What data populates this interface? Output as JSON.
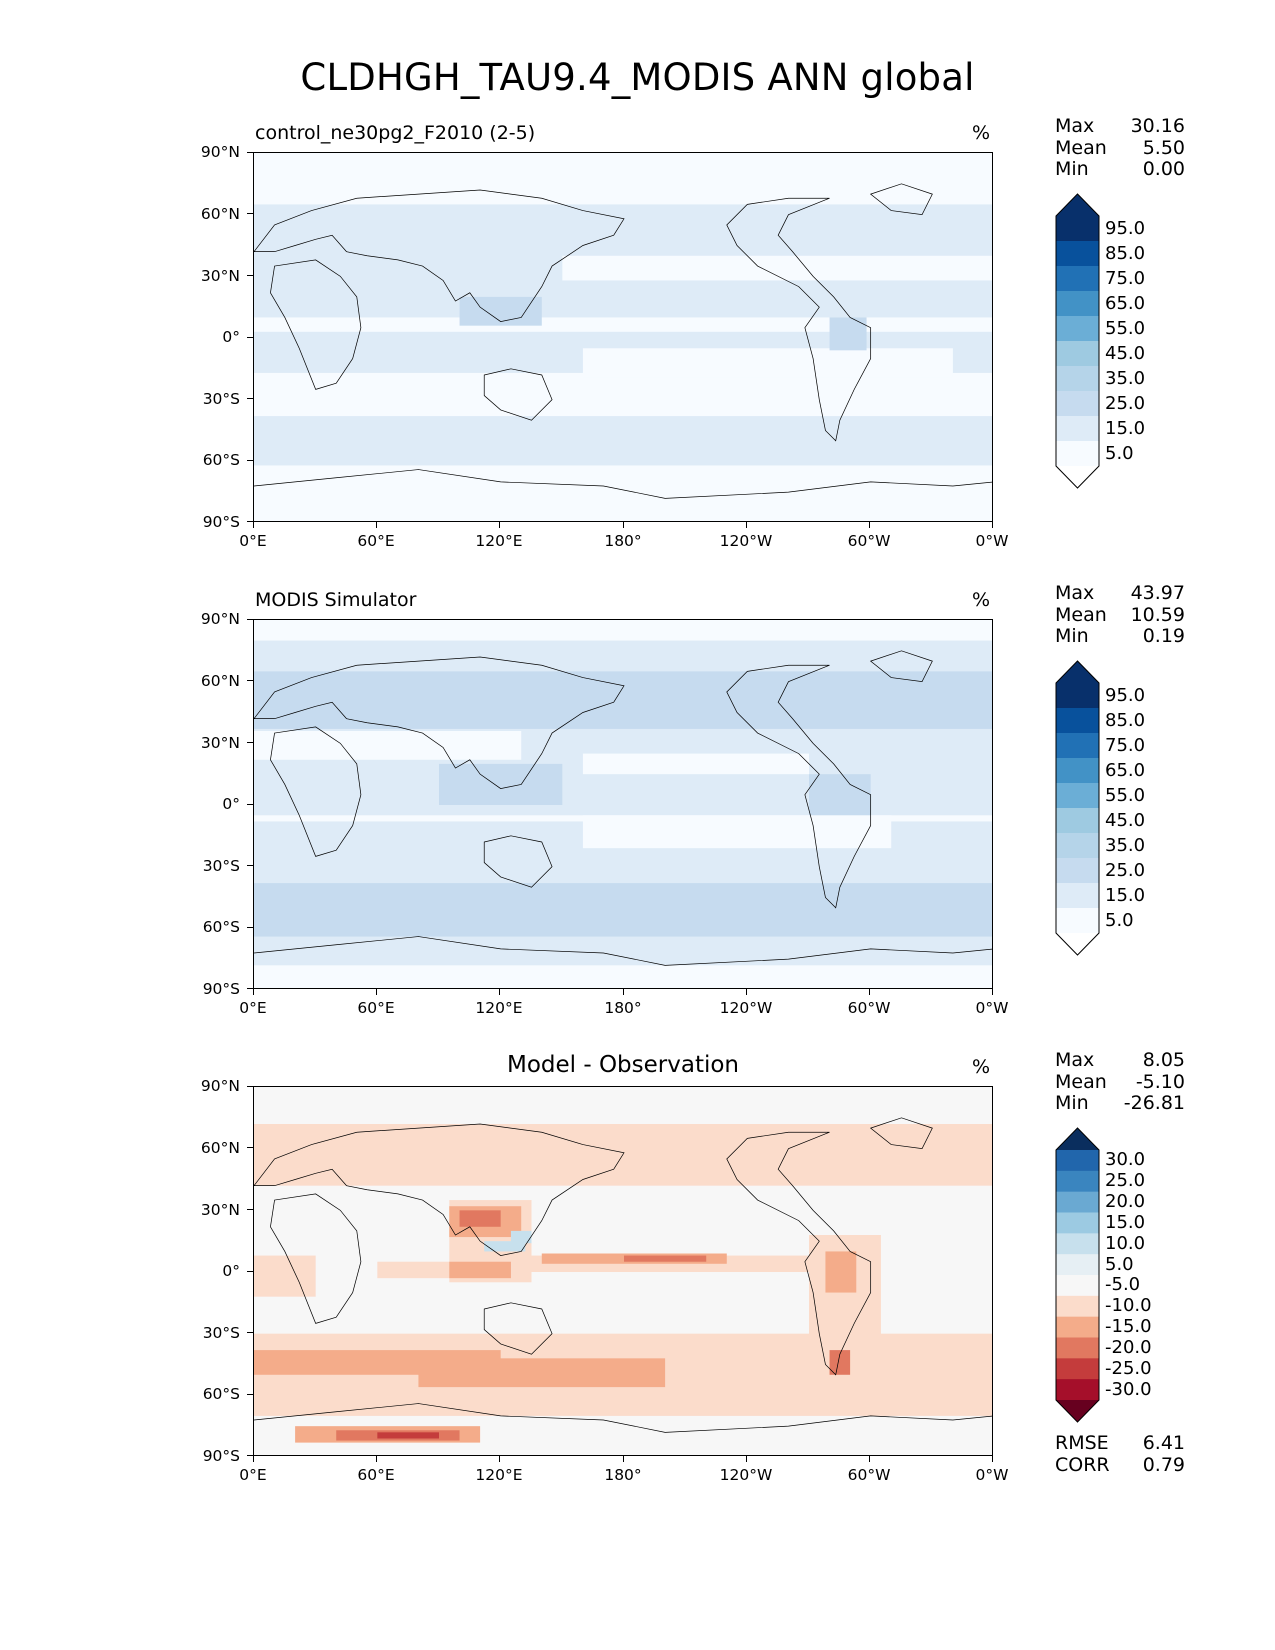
{
  "title": "CLDHGH_TAU9.4_MODIS ANN global",
  "lat_labels": [
    "90°N",
    "60°N",
    "30°N",
    "0°",
    "30°S",
    "60°S",
    "90°S"
  ],
  "lon_labels": [
    "0°E",
    "60°E",
    "120°E",
    "180°",
    "120°W",
    "60°W",
    "0°W"
  ],
  "panels": [
    {
      "title_left": "control_ne30pg2_F2010 (2-5)",
      "units": "%",
      "stats": {
        "max_label": "Max",
        "max": "30.16",
        "mean_label": "Mean",
        "mean": "5.50",
        "min_label": "Min",
        "min": "0.00"
      },
      "colorbar": {
        "labels": [
          "95.0",
          "85.0",
          "75.0",
          "65.0",
          "55.0",
          "45.0",
          "35.0",
          "25.0",
          "15.0",
          "5.0"
        ],
        "colors": [
          "#08306b",
          "#08519c",
          "#2171b5",
          "#4292c6",
          "#6baed6",
          "#9ecae1",
          "#b5d4e9",
          "#c6dbef",
          "#deebf7",
          "#f7fbff"
        ],
        "top_color": "#08306b",
        "bottom_color": "#ffffff"
      }
    },
    {
      "title_left": "MODIS Simulator",
      "units": "%",
      "stats": {
        "max_label": "Max",
        "max": "43.97",
        "mean_label": "Mean",
        "mean": "10.59",
        "min_label": "Min",
        "min": "0.19"
      },
      "colorbar": {
        "labels": [
          "95.0",
          "85.0",
          "75.0",
          "65.0",
          "55.0",
          "45.0",
          "35.0",
          "25.0",
          "15.0",
          "5.0"
        ],
        "colors": [
          "#08306b",
          "#08519c",
          "#2171b5",
          "#4292c6",
          "#6baed6",
          "#9ecae1",
          "#b5d4e9",
          "#c6dbef",
          "#deebf7",
          "#f7fbff"
        ],
        "top_color": "#08306b",
        "bottom_color": "#ffffff"
      }
    },
    {
      "title_center": "Model - Observation",
      "units": "%",
      "stats": {
        "max_label": "Max",
        "max": "8.05",
        "mean_label": "Mean",
        "mean": "-5.10",
        "min_label": "Min",
        "min": "-26.81"
      },
      "colorbar": {
        "labels": [
          "30.0",
          "25.0",
          "20.0",
          "15.0",
          "10.0",
          "5.0",
          "-5.0",
          "-10.0",
          "-15.0",
          "-20.0",
          "-25.0",
          "-30.0"
        ],
        "colors": [
          "#2166ac",
          "#3a85bf",
          "#6aa9d2",
          "#9ccae2",
          "#c7e0ed",
          "#e6eff4",
          "#f7f7f7",
          "#fbdccb",
          "#f4ac8a",
          "#e17860",
          "#c43c3c",
          "#a50f2a"
        ],
        "top_color": "#0a2e5e",
        "bottom_color": "#67001f"
      },
      "rmse_label": "RMSE",
      "rmse": "6.41",
      "corr_label": "CORR",
      "corr": "0.79"
    }
  ]
}
